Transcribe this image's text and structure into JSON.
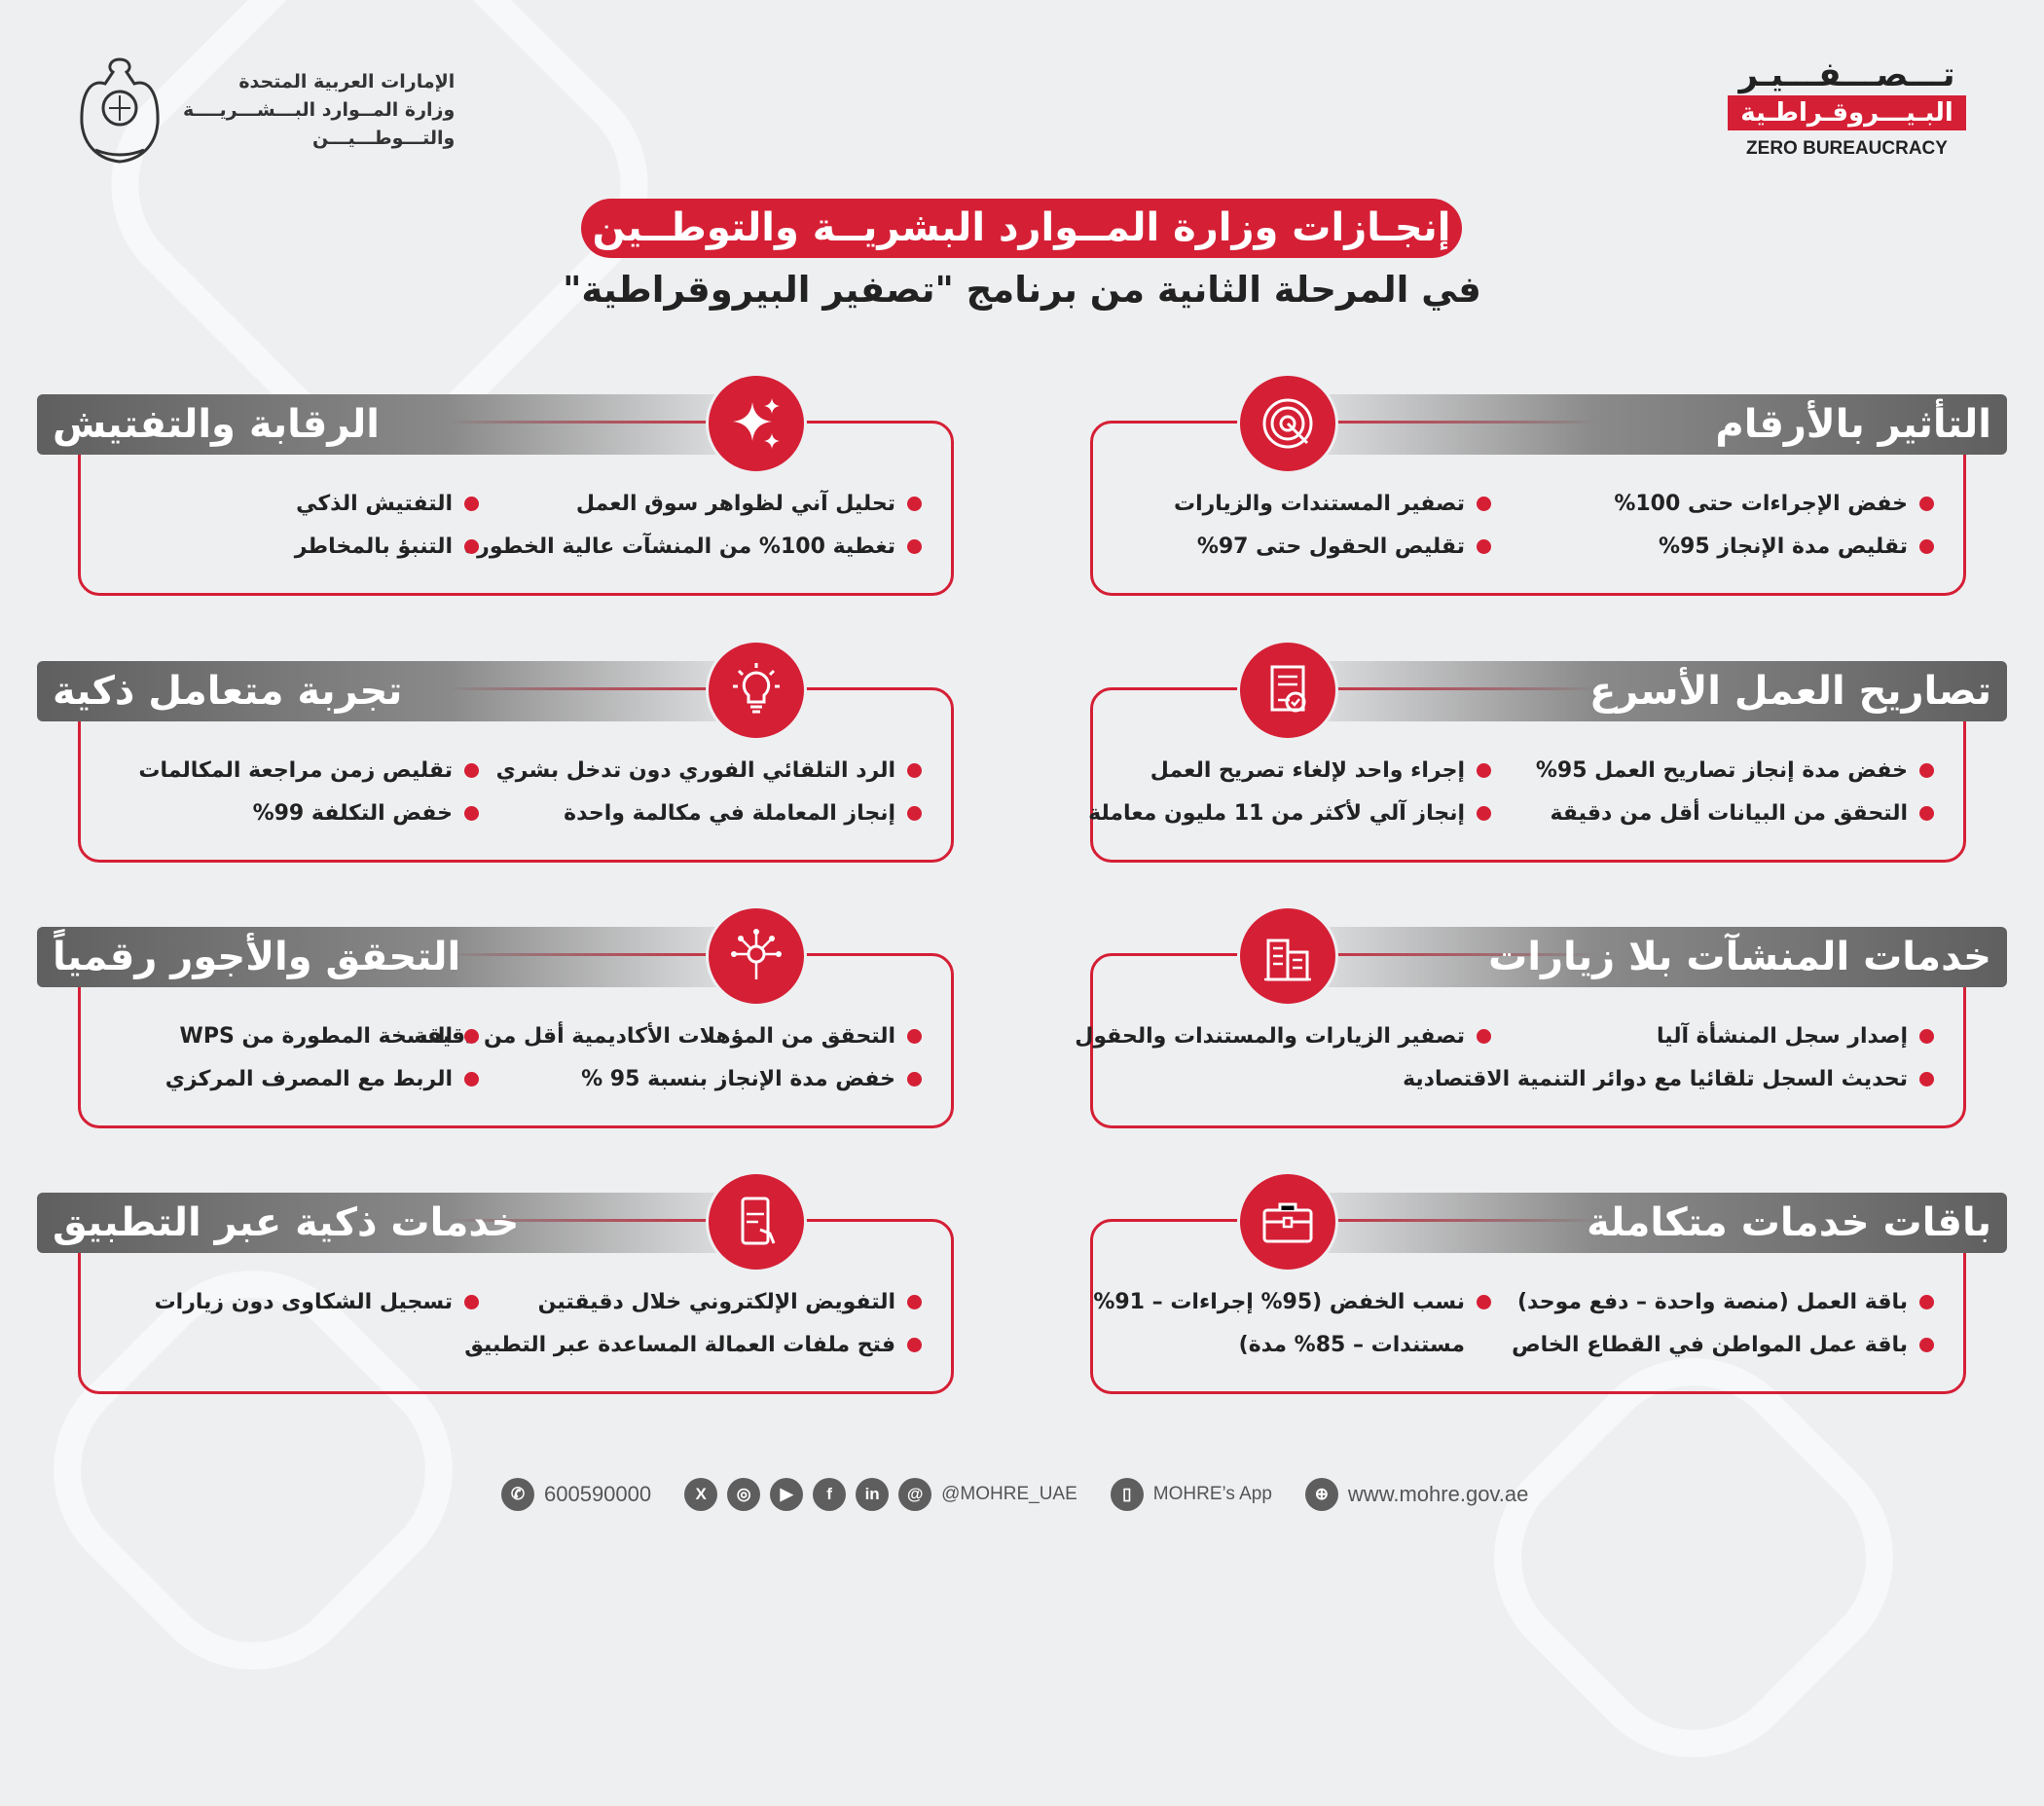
{
  "colors": {
    "accent": "#d51f35",
    "bar_gray": "#5f5f5f",
    "background": "#eeeff1"
  },
  "ministry": {
    "line1": "الإمارات العربية المتحدة",
    "line2": "وزارة المــوارد البـــشـــريــــة",
    "line3": "والتـــوطـــيـــن",
    "emblem": "uae-emblem"
  },
  "logo": {
    "line1": "تـــصـــفـــيـر",
    "line2": "البـيـــروقـراطـية",
    "line3": "ZERO BUREAUCRACY"
  },
  "title": "إنجـازات وزارة المــوارد البشريــة والتوطــين",
  "subtitle": "في المرحلة الثانية من برنامج \"تصفير البيروقراطية\"",
  "cards": [
    {
      "title": "التأثير بالأرقام",
      "icon": "target-icon",
      "items": [
        [
          "خفض الإجراءات حتى 100%",
          "تقليص مدة الإنجاز 95%"
        ],
        [
          "تصفير المستندات والزيارات",
          "تقليص الحقول حتى 97%"
        ]
      ]
    },
    {
      "title": "الرقابة والتفتيش",
      "icon": "sparkle-icon",
      "items": [
        [
          "تحليل آني لظواهر سوق العمل",
          "تغطية 100% من المنشآت عالية الخطورة"
        ],
        [
          "التفتيش الذكي",
          "التنبؤ بالمخاطر"
        ]
      ]
    },
    {
      "title": "تصاريح العمل الأسرع",
      "icon": "document-check-icon",
      "items": [
        [
          "خفض مدة إنجاز تصاريح العمل 95%",
          "التحقق من البيانات أقل من دقيقة"
        ],
        [
          "إجراء واحد لإلغاء تصريح العمل",
          "إنجاز آلي لأكثر من 11 مليون معاملة"
        ]
      ]
    },
    {
      "title": "تجربة متعامل ذكية",
      "icon": "lightbulb-icon",
      "items": [
        [
          "الرد التلقائي الفوري دون تدخل بشري",
          "إنجاز المعاملة في مكالمة واحدة"
        ],
        [
          "تقليص زمن مراجعة المكالمات",
          "خفض التكلفة 99%"
        ]
      ]
    },
    {
      "title": "خدمات المنشآت بلا زيارات",
      "icon": "buildings-icon",
      "items": [
        [
          "إصدار سجل المنشأة آليا",
          "تحديث السجل تلقائيا مع دوائر التنمية الاقتصادية"
        ],
        [
          "تصفير الزيارات والمستندات والحقول"
        ]
      ]
    },
    {
      "title": "التحقق والأجور رقمياً",
      "icon": "digital-touch-icon",
      "items": [
        [
          "التحقق من المؤهلات الأكاديمية أقل من دقيقة",
          "خفض مدة الإنجاز بنسبة 95 %"
        ],
        [
          "النسخة المطورة من WPS",
          "الربط مع المصرف المركزي"
        ]
      ]
    },
    {
      "title": "باقات خدمات متكاملة",
      "icon": "briefcase-icon",
      "items": [
        [
          "باقة العمل (منصة واحدة – دفع موحد)",
          "باقة عمل المواطن في القطاع الخاص"
        ],
        [
          "نسب الخفض (95% إجراءات – 91%",
          "مستندات – 85% مدة)"
        ]
      ]
    },
    {
      "title": "خدمات ذكية عبر التطبيق",
      "icon": "mobile-app-icon",
      "items": [
        [
          "التفويض الإلكتروني خلال دقيقتين",
          "فتح ملفات العمالة المساعدة عبر التطبيق"
        ],
        [
          "تسجيل الشكاوى دون زيارات"
        ]
      ]
    }
  ],
  "footer": {
    "phone": "600590000",
    "social_handle": "@MOHRE_UAE",
    "app": "MOHRE’s App",
    "website": "www.mohre.gov.ae",
    "social_icons": [
      "x-icon",
      "instagram-icon",
      "youtube-icon",
      "facebook-icon",
      "linkedin-icon",
      "threads-icon"
    ]
  }
}
